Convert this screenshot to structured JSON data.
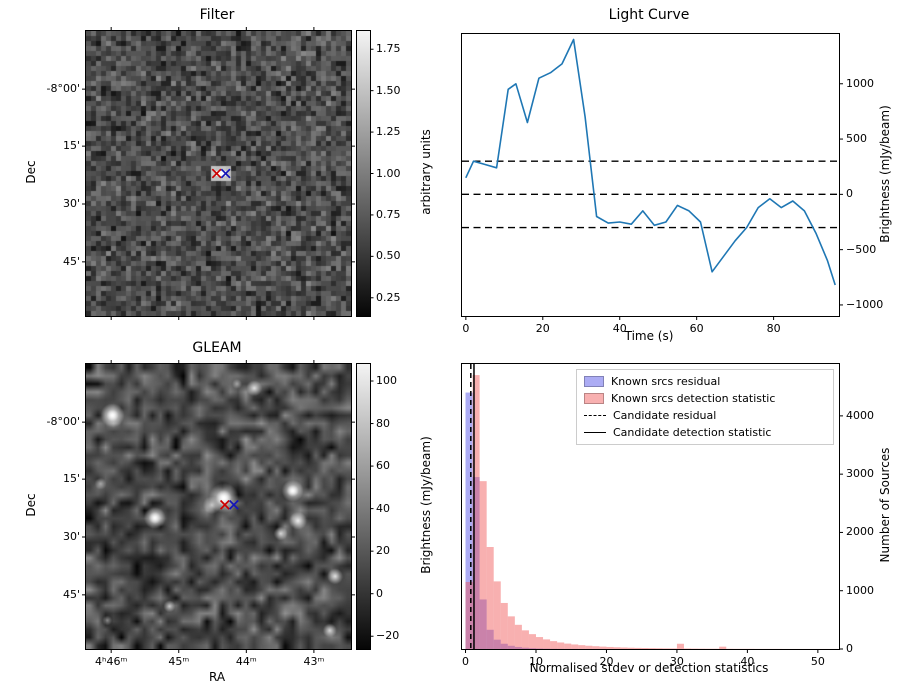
{
  "colors": {
    "line": "#1f77b4",
    "hist_residual_fill": "rgba(70,70,230,0.45)",
    "hist_detection_fill": "rgba(240,80,80,0.45)",
    "candidate_line": "#000000",
    "marker_red": "#cc0000",
    "marker_blue": "#1414b8"
  },
  "chart_data": [
    {
      "type": "heatmap",
      "title": "Filter",
      "ylabel": "Dec",
      "ytick_labels": [
        "-8°00'",
        "15'",
        "30'",
        "45'"
      ],
      "ytick_f": [
        0.204,
        0.404,
        0.607,
        0.81
      ],
      "xtick_f": [
        0.095,
        0.35,
        0.605,
        0.86
      ],
      "colorbar": {
        "label": "arbitrary units",
        "tickvals": [
          1.75,
          1.5,
          1.25,
          1.0,
          0.75,
          0.5,
          0.25
        ],
        "range": [
          0.14,
          1.86
        ],
        "decimals": 2
      },
      "markers": [
        {
          "symbol": "x",
          "color": "#cc0000",
          "fx": 0.493,
          "fy": 0.5
        },
        {
          "symbol": "x",
          "color": "#1414b8",
          "fx": 0.527,
          "fy": 0.5
        }
      ],
      "description": "grayscale pixel noise map with faint bright patch at candidate position"
    },
    {
      "type": "line",
      "title": "Light Curve",
      "xlabel": "Time (s)",
      "ylabel": "Brightness (mJy/beam)",
      "xlim": [
        -1,
        97
      ],
      "ylim": [
        -1100,
        1450
      ],
      "xticks": [
        0,
        20,
        40,
        60,
        80
      ],
      "yticks": [
        1000,
        500,
        0,
        -500,
        -1000
      ],
      "hlines": [
        {
          "y": 300,
          "style": "dashed"
        },
        {
          "y": 0,
          "style": "dashed"
        },
        {
          "y": -300,
          "style": "dashed"
        }
      ],
      "series": [
        {
          "name": "brightness",
          "x": [
            0,
            2,
            5,
            8,
            11,
            13,
            16,
            19,
            22,
            25,
            28,
            31,
            34,
            37,
            40,
            43,
            46,
            49,
            52,
            55,
            58,
            61,
            64,
            67,
            70,
            73,
            76,
            79,
            82,
            85,
            88,
            91,
            94,
            96
          ],
          "y": [
            150,
            300,
            270,
            240,
            950,
            1000,
            650,
            1050,
            1100,
            1180,
            1400,
            700,
            -200,
            -260,
            -250,
            -270,
            -150,
            -280,
            -250,
            -100,
            -150,
            -250,
            -700,
            -560,
            -420,
            -300,
            -120,
            -40,
            -120,
            -60,
            -150,
            -350,
            -600,
            -820
          ]
        }
      ]
    },
    {
      "type": "heatmap",
      "title": "GLEAM",
      "xlabel": "RA",
      "ylabel": "Dec",
      "ytick_labels": [
        "-8°00'",
        "15'",
        "30'",
        "45'"
      ],
      "ytick_f": [
        0.204,
        0.404,
        0.607,
        0.81
      ],
      "xtick_labels": [
        "4ʰ46ᵐ",
        "45ᵐ",
        "44ᵐ",
        "43ᵐ"
      ],
      "xtick_f": [
        0.095,
        0.35,
        0.605,
        0.86
      ],
      "colorbar": {
        "label": "Brightness (mJy/beam)",
        "tickvals": [
          100,
          80,
          60,
          40,
          20,
          0,
          -20
        ],
        "range": [
          -26,
          108
        ],
        "decimals": 0
      },
      "markers": [
        {
          "symbol": "x",
          "color": "#cc0000",
          "fx": 0.524,
          "fy": 0.494
        },
        {
          "symbol": "x",
          "color": "#1414b8",
          "fx": 0.558,
          "fy": 0.494
        }
      ],
      "sources": [
        {
          "fx": 0.52,
          "fy": 0.47,
          "r": 15,
          "a": 1.0
        },
        {
          "fx": 0.52,
          "fy": 0.47,
          "r": 8,
          "a": 1.0
        },
        {
          "fx": 0.475,
          "fy": 0.495,
          "r": 9,
          "a": 0.7
        },
        {
          "fx": 0.1,
          "fy": 0.18,
          "r": 12,
          "a": 1.0
        },
        {
          "fx": 0.1,
          "fy": 0.18,
          "r": 6,
          "a": 0.9
        },
        {
          "fx": 0.635,
          "fy": 0.085,
          "r": 8,
          "a": 0.85
        },
        {
          "fx": 0.78,
          "fy": 0.445,
          "r": 11,
          "a": 1.0
        },
        {
          "fx": 0.78,
          "fy": 0.445,
          "r": 6,
          "a": 0.9
        },
        {
          "fx": 0.8,
          "fy": 0.55,
          "r": 9,
          "a": 0.9
        },
        {
          "fx": 0.735,
          "fy": 0.595,
          "r": 7,
          "a": 0.8
        },
        {
          "fx": 0.26,
          "fy": 0.54,
          "r": 11,
          "a": 0.95
        },
        {
          "fx": 0.26,
          "fy": 0.54,
          "r": 6,
          "a": 0.85
        },
        {
          "fx": 0.055,
          "fy": 0.42,
          "r": 6,
          "a": 0.5
        },
        {
          "fx": 0.94,
          "fy": 0.745,
          "r": 8,
          "a": 0.85
        },
        {
          "fx": 0.315,
          "fy": 0.85,
          "r": 6,
          "a": 0.75
        },
        {
          "fx": 0.92,
          "fy": 0.935,
          "r": 7,
          "a": 0.8
        },
        {
          "fx": 0.08,
          "fy": 0.9,
          "r": 5,
          "a": 0.5
        },
        {
          "fx": 0.57,
          "fy": 0.07,
          "r": 5,
          "a": 0.5
        }
      ]
    },
    {
      "type": "histogram",
      "xlabel": "Normalised stdev or detection statistics",
      "ylabel": "Number of Sources",
      "xlim": [
        -0.5,
        53
      ],
      "ylim": [
        0,
        4890
      ],
      "xticks": [
        0,
        10,
        20,
        30,
        40,
        50
      ],
      "yticks": [
        0,
        1000,
        2000,
        3000,
        4000
      ],
      "bin_width": 1,
      "bin_start": 0,
      "series": [
        {
          "name": "Known srcs residual",
          "counts": [
            4400,
            2950,
            850,
            330,
            160,
            90,
            55,
            35,
            22,
            14,
            9,
            6,
            4,
            3,
            2,
            2,
            1,
            1,
            1,
            1
          ]
        },
        {
          "name": "Known srcs detection statistic",
          "counts": [
            1150,
            4700,
            2880,
            1750,
            1160,
            790,
            560,
            415,
            320,
            255,
            205,
            165,
            135,
            112,
            93,
            78,
            66,
            56,
            48,
            41,
            35,
            30,
            26,
            22,
            19,
            17,
            15,
            13,
            11,
            10,
            90,
            9,
            7,
            6,
            5,
            5,
            40,
            4,
            3,
            3,
            3,
            2,
            2,
            2,
            2,
            1,
            1,
            1,
            1,
            1,
            1,
            1,
            1
          ]
        }
      ],
      "vlines": [
        {
          "name": "Candidate residual",
          "x": 0.75,
          "style": "dashed"
        },
        {
          "name": "Candidate detection statistic",
          "x": 1.2,
          "style": "solid"
        }
      ],
      "legend": [
        "Known srcs residual",
        "Known srcs detection statistic",
        "Candidate residual",
        "Candidate detection statistic"
      ]
    }
  ]
}
